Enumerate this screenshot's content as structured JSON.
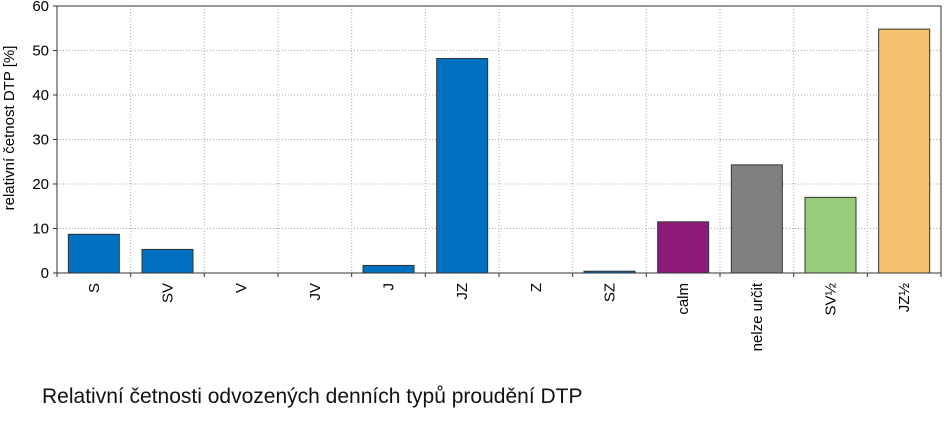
{
  "chart_data": {
    "type": "bar",
    "title": "Relativní četnosti odvozených denních typů proudění DTP",
    "xlabel": "",
    "ylabel": "relativní četnost DTP [%]",
    "ylim": [
      0,
      60
    ],
    "yticks": [
      0,
      10,
      20,
      30,
      40,
      50,
      60
    ],
    "grid": true,
    "legend": "none",
    "categories": [
      "S",
      "SV",
      "V",
      "JV",
      "J",
      "JZ",
      "Z",
      "SZ",
      "calm",
      "nelze určit",
      "SV½",
      "JZ½"
    ],
    "values": [
      8.7,
      5.3,
      0,
      0,
      1.7,
      48.2,
      0,
      0.4,
      11.5,
      24.3,
      17.0,
      54.8
    ],
    "colors": [
      "#0070c0",
      "#0070c0",
      "#0070c0",
      "#0070c0",
      "#0070c0",
      "#0070c0",
      "#0070c0",
      "#0070c0",
      "#8e1a7a",
      "#808080",
      "#99cc7a",
      "#f5c36e"
    ]
  }
}
